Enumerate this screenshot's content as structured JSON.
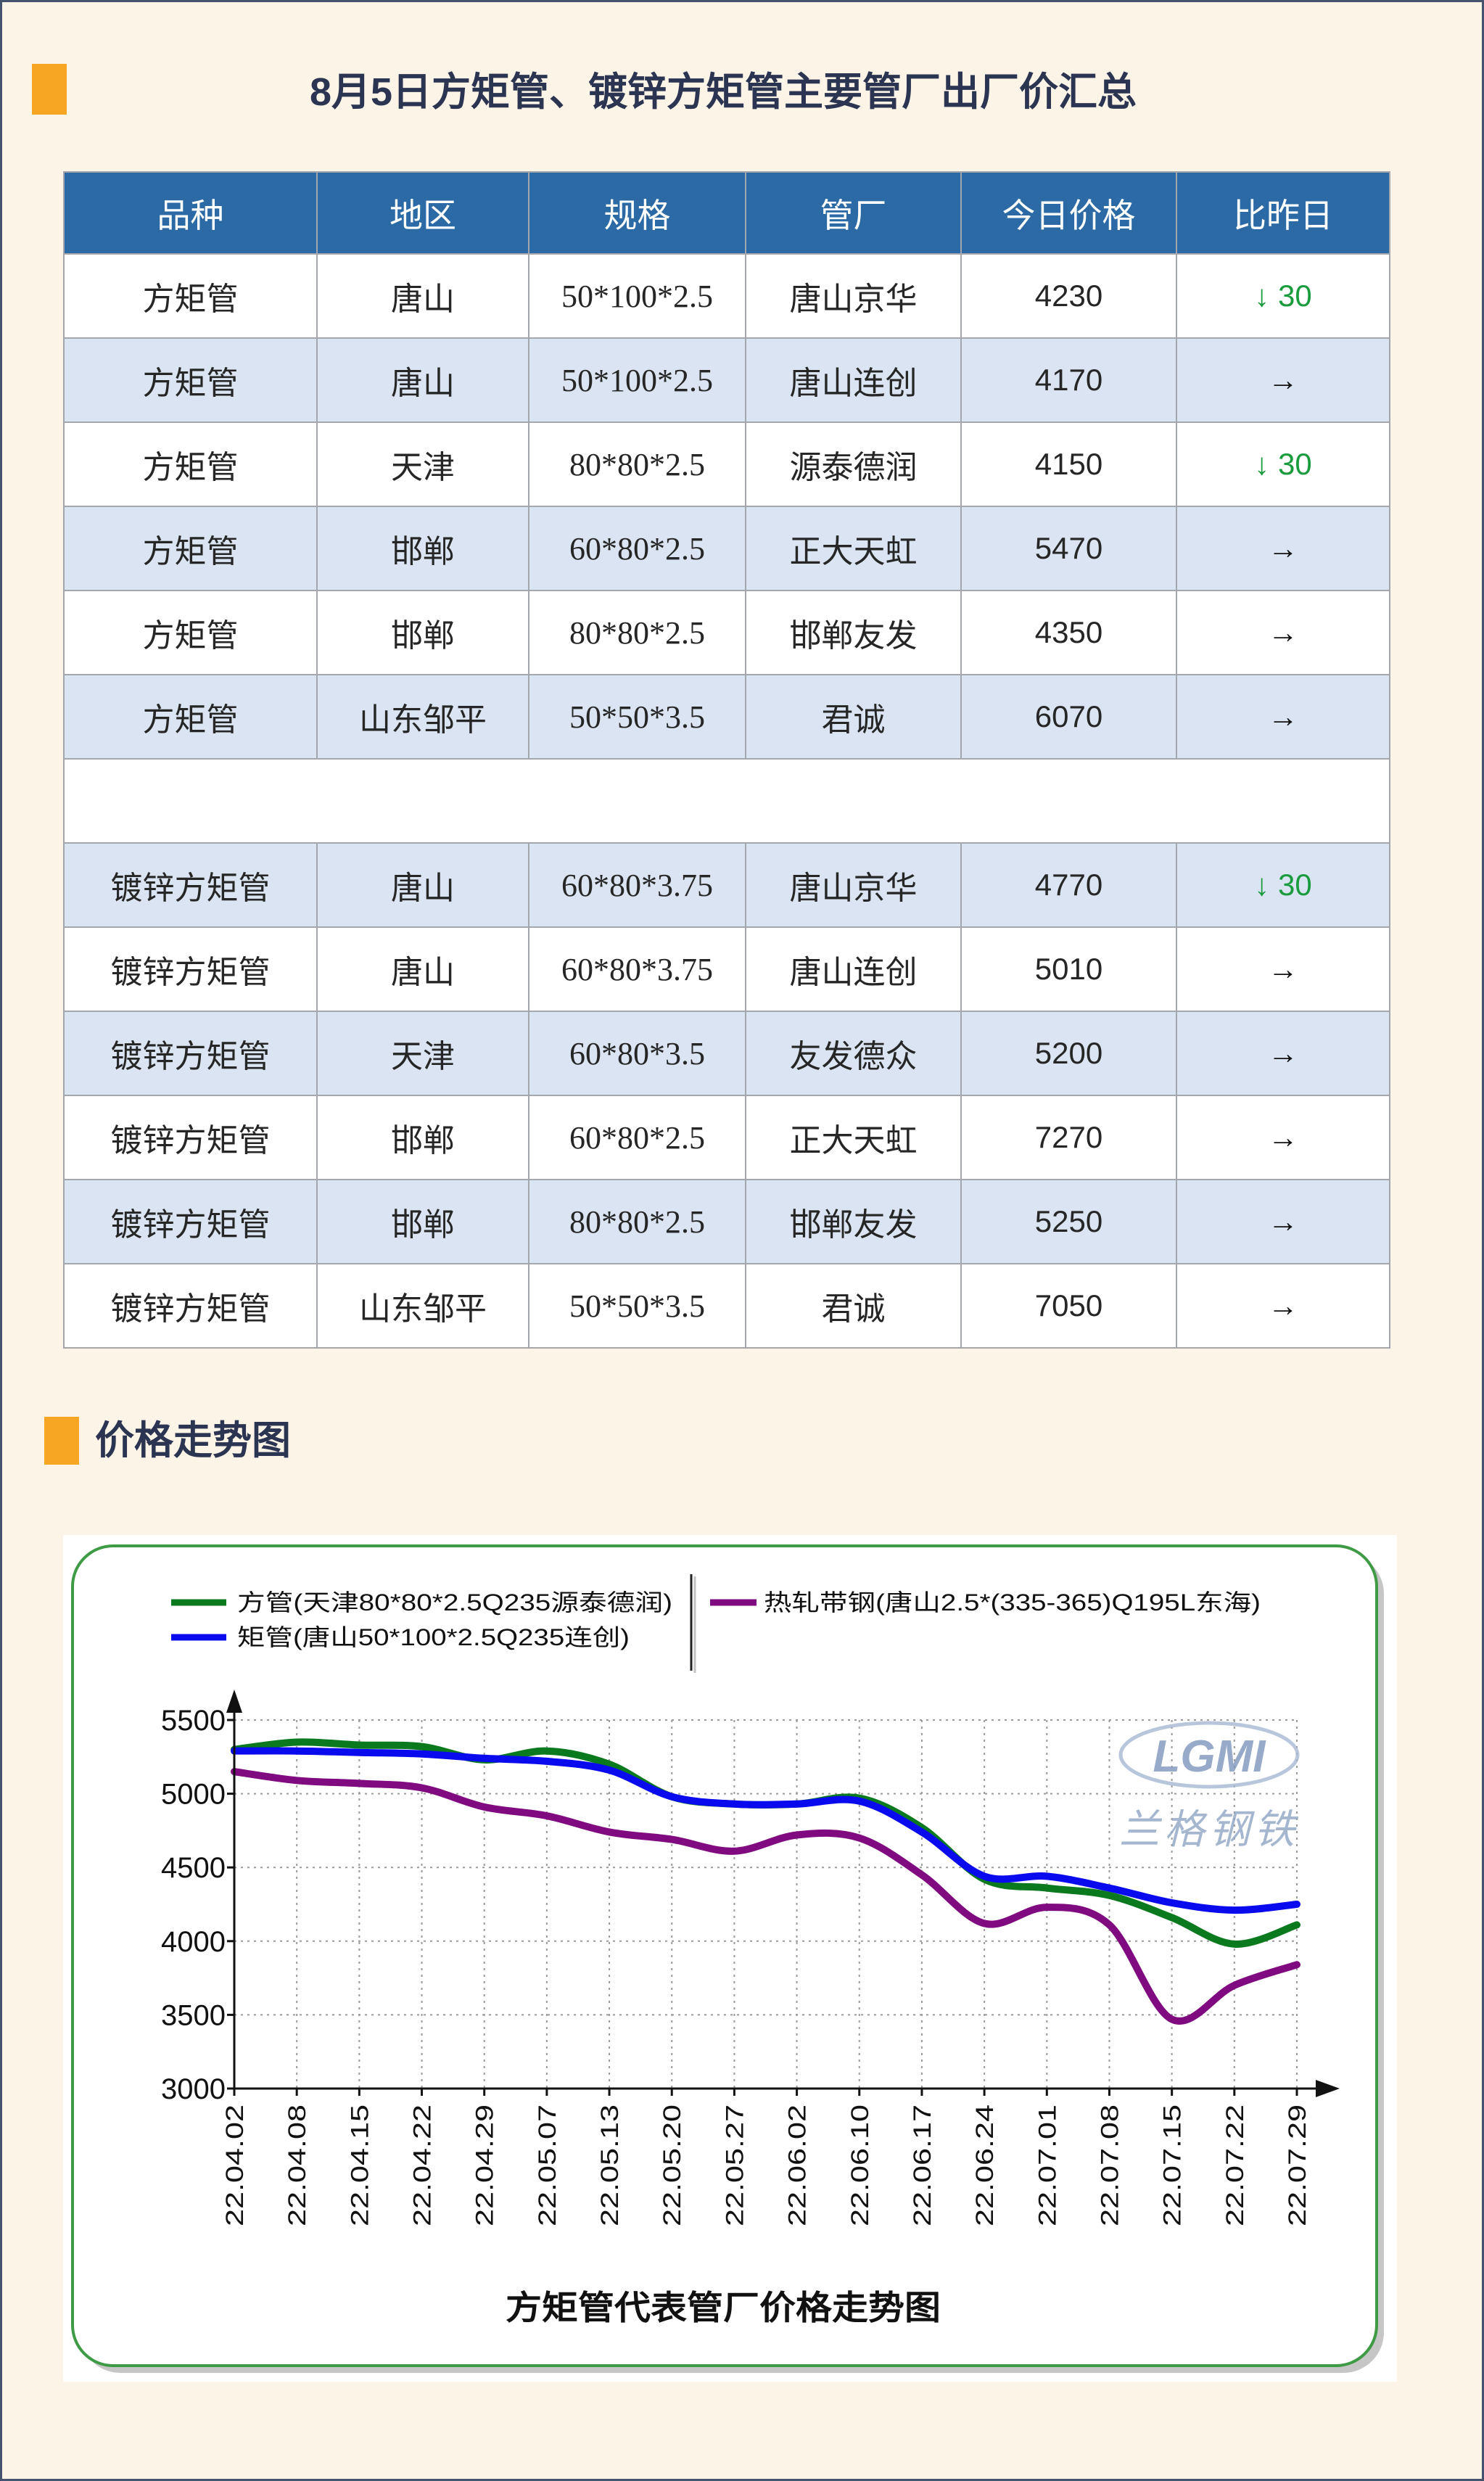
{
  "colors": {
    "accent": "#f6a623",
    "title_color": "#2b3450",
    "header_bg": "#2b6aa5",
    "alt_row_bg": "#dbe4f3",
    "down": "#1a9c3e"
  },
  "section1": {
    "title": "8月5日方矩管、镀锌方矩管主要管厂出厂价汇总"
  },
  "table": {
    "headers": [
      "品种",
      "地区",
      "规格",
      "管厂",
      "今日价格",
      "比昨日"
    ],
    "groups": [
      {
        "rows": [
          {
            "variety": "方矩管",
            "region": "唐山",
            "spec": "50*100*2.5",
            "mill": "唐山京华",
            "price": "4230",
            "change": "↓ 30"
          },
          {
            "variety": "方矩管",
            "region": "唐山",
            "spec": "50*100*2.5",
            "mill": "唐山连创",
            "price": "4170",
            "change": "→"
          },
          {
            "variety": "方矩管",
            "region": "天津",
            "spec": "80*80*2.5",
            "mill": "源泰德润",
            "price": "4150",
            "change": "↓ 30"
          },
          {
            "variety": "方矩管",
            "region": "邯郸",
            "spec": "60*80*2.5",
            "mill": "正大天虹",
            "price": "5470",
            "change": "→"
          },
          {
            "variety": "方矩管",
            "region": "邯郸",
            "spec": "80*80*2.5",
            "mill": "邯郸友发",
            "price": "4350",
            "change": "→"
          },
          {
            "variety": "方矩管",
            "region": "山东邹平",
            "spec": "50*50*3.5",
            "mill": "君诚",
            "price": "6070",
            "change": "→"
          }
        ]
      },
      {
        "rows": [
          {
            "variety": "镀锌方矩管",
            "region": "唐山",
            "spec": "60*80*3.75",
            "mill": "唐山京华",
            "price": "4770",
            "change": "↓ 30"
          },
          {
            "variety": "镀锌方矩管",
            "region": "唐山",
            "spec": "60*80*3.75",
            "mill": "唐山连创",
            "price": "5010",
            "change": "→"
          },
          {
            "variety": "镀锌方矩管",
            "region": "天津",
            "spec": "60*80*3.5",
            "mill": "友发德众",
            "price": "5200",
            "change": "→"
          },
          {
            "variety": "镀锌方矩管",
            "region": "邯郸",
            "spec": "60*80*2.5",
            "mill": "正大天虹",
            "price": "7270",
            "change": "→"
          },
          {
            "variety": "镀锌方矩管",
            "region": "邯郸",
            "spec": "80*80*2.5",
            "mill": "邯郸友发",
            "price": "5250",
            "change": "→"
          },
          {
            "variety": "镀锌方矩管",
            "region": "山东邹平",
            "spec": "50*50*3.5",
            "mill": "君诚",
            "price": "7050",
            "change": "→"
          }
        ]
      }
    ]
  },
  "section2": {
    "title": "价格走势图"
  },
  "watermark": {
    "logo_text": "LGMI",
    "logo_cn": "兰格钢铁"
  },
  "chart_data": {
    "type": "line",
    "title": "方矩管代表管厂价格走势图",
    "x": [
      "22.04.02",
      "22.04.08",
      "22.04.15",
      "22.04.22",
      "22.04.29",
      "22.05.07",
      "22.05.13",
      "22.05.20",
      "22.05.27",
      "22.06.02",
      "22.06.10",
      "22.06.17",
      "22.06.24",
      "22.07.01",
      "22.07.08",
      "22.07.15",
      "22.07.22",
      "22.07.29"
    ],
    "ylim": [
      3000,
      5500
    ],
    "yticks": [
      5500,
      5000,
      4500,
      4000,
      3500,
      3000
    ],
    "grid": true,
    "legend_position": "top",
    "series": [
      {
        "name": "方管(天津80*80*2.5Q235源泰德润)",
        "color": "#0b7a1e",
        "values": [
          5300,
          5350,
          5330,
          5320,
          5230,
          5290,
          5200,
          4980,
          4930,
          4930,
          4970,
          4770,
          4420,
          4360,
          4310,
          4160,
          3980,
          4110
        ]
      },
      {
        "name": "矩管(唐山50*100*2.5Q235连创)",
        "color": "#0a0aee",
        "values": [
          5290,
          5290,
          5280,
          5270,
          5240,
          5220,
          5160,
          4980,
          4930,
          4930,
          4950,
          4740,
          4440,
          4440,
          4360,
          4260,
          4210,
          4250
        ]
      },
      {
        "name": "热轧带钢(唐山2.5*(335-365)Q195L东海)",
        "color": "#800a80",
        "values": [
          5150,
          5090,
          5070,
          5040,
          4910,
          4850,
          4740,
          4690,
          4610,
          4720,
          4700,
          4450,
          4120,
          4230,
          4110,
          3470,
          3700,
          3840
        ]
      }
    ]
  }
}
